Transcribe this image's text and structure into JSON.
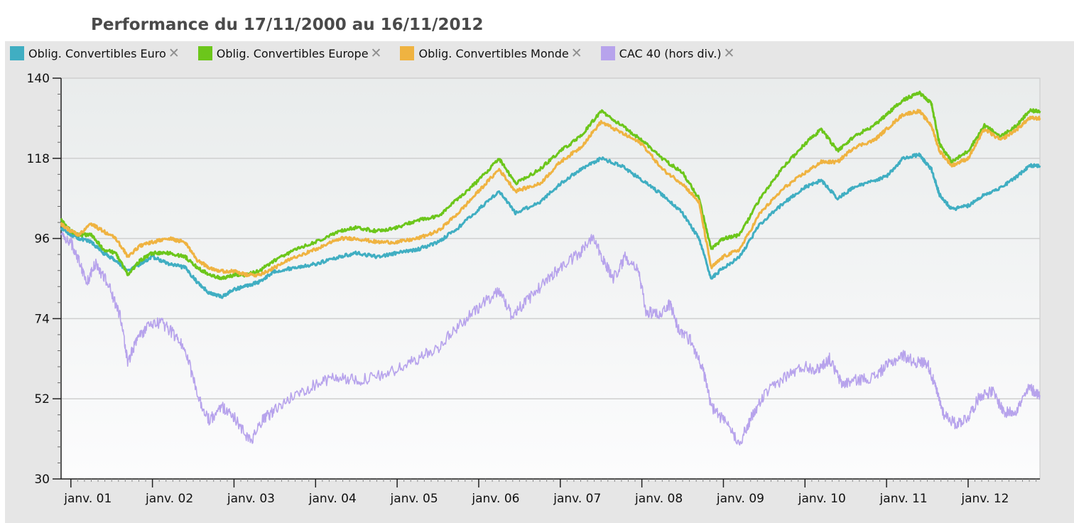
{
  "chart_data": {
    "type": "line",
    "title": "Performance du 17/11/2000 au 16/11/2012",
    "xlabel": "",
    "ylabel": "",
    "ylim": [
      30,
      140
    ],
    "yticks": [
      30,
      52,
      74,
      96,
      118,
      140
    ],
    "xlim": [
      2000.88,
      2012.88
    ],
    "xticks": [
      {
        "x": 2001.0,
        "label": "janv. 01"
      },
      {
        "x": 2002.0,
        "label": "janv. 02"
      },
      {
        "x": 2003.0,
        "label": "janv. 03"
      },
      {
        "x": 2004.0,
        "label": "janv. 04"
      },
      {
        "x": 2005.0,
        "label": "janv. 05"
      },
      {
        "x": 2006.0,
        "label": "janv. 06"
      },
      {
        "x": 2007.0,
        "label": "janv. 07"
      },
      {
        "x": 2008.0,
        "label": "janv. 08"
      },
      {
        "x": 2009.0,
        "label": "janv. 09"
      },
      {
        "x": 2010.0,
        "label": "janv. 10"
      },
      {
        "x": 2011.0,
        "label": "janv. 11"
      },
      {
        "x": 2012.0,
        "label": "janv. 12"
      }
    ],
    "grid": true,
    "legend_position": "top",
    "series": [
      {
        "name": "Oblig. Convertibles Euro",
        "color": "#40aec2",
        "points": [
          [
            2000.88,
            99
          ],
          [
            2001.0,
            97
          ],
          [
            2001.1,
            96
          ],
          [
            2001.25,
            95
          ],
          [
            2001.4,
            92
          ],
          [
            2001.55,
            90
          ],
          [
            2001.7,
            87
          ],
          [
            2001.85,
            89
          ],
          [
            2002.0,
            91
          ],
          [
            2002.2,
            89
          ],
          [
            2002.4,
            88
          ],
          [
            2002.55,
            84
          ],
          [
            2002.7,
            81
          ],
          [
            2002.85,
            80
          ],
          [
            2003.0,
            82
          ],
          [
            2003.15,
            83
          ],
          [
            2003.3,
            84
          ],
          [
            2003.5,
            87
          ],
          [
            2003.75,
            88
          ],
          [
            2004.0,
            89
          ],
          [
            2004.3,
            91
          ],
          [
            2004.5,
            92
          ],
          [
            2004.75,
            91
          ],
          [
            2005.0,
            92
          ],
          [
            2005.25,
            93
          ],
          [
            2005.5,
            95
          ],
          [
            2005.75,
            99
          ],
          [
            2006.0,
            104
          ],
          [
            2006.25,
            109
          ],
          [
            2006.45,
            103
          ],
          [
            2006.75,
            106
          ],
          [
            2007.0,
            111
          ],
          [
            2007.25,
            115
          ],
          [
            2007.5,
            118
          ],
          [
            2007.75,
            116
          ],
          [
            2008.0,
            112
          ],
          [
            2008.25,
            108
          ],
          [
            2008.5,
            103
          ],
          [
            2008.7,
            96
          ],
          [
            2008.85,
            85
          ],
          [
            2009.0,
            88
          ],
          [
            2009.2,
            91
          ],
          [
            2009.45,
            100
          ],
          [
            2009.75,
            106
          ],
          [
            2010.0,
            110
          ],
          [
            2010.2,
            112
          ],
          [
            2010.4,
            107
          ],
          [
            2010.6,
            110
          ],
          [
            2010.85,
            112
          ],
          [
            2011.0,
            113
          ],
          [
            2011.2,
            118
          ],
          [
            2011.4,
            119
          ],
          [
            2011.55,
            115
          ],
          [
            2011.65,
            108
          ],
          [
            2011.8,
            104
          ],
          [
            2012.0,
            105
          ],
          [
            2012.2,
            108
          ],
          [
            2012.4,
            110
          ],
          [
            2012.6,
            113
          ],
          [
            2012.75,
            116
          ],
          [
            2012.88,
            116
          ]
        ]
      },
      {
        "name": "Oblig. Convertibles Europe",
        "color": "#6cc61b",
        "points": [
          [
            2000.88,
            101
          ],
          [
            2001.0,
            98
          ],
          [
            2001.1,
            97
          ],
          [
            2001.25,
            97
          ],
          [
            2001.4,
            93
          ],
          [
            2001.55,
            92
          ],
          [
            2001.7,
            86
          ],
          [
            2001.85,
            90
          ],
          [
            2002.0,
            92
          ],
          [
            2002.2,
            92
          ],
          [
            2002.4,
            91
          ],
          [
            2002.55,
            88
          ],
          [
            2002.7,
            86
          ],
          [
            2002.85,
            85
          ],
          [
            2003.0,
            86
          ],
          [
            2003.15,
            86
          ],
          [
            2003.3,
            87
          ],
          [
            2003.5,
            90
          ],
          [
            2003.75,
            93
          ],
          [
            2004.0,
            95
          ],
          [
            2004.3,
            98
          ],
          [
            2004.5,
            99
          ],
          [
            2004.75,
            98
          ],
          [
            2005.0,
            99
          ],
          [
            2005.25,
            101
          ],
          [
            2005.5,
            102
          ],
          [
            2005.75,
            107
          ],
          [
            2006.0,
            112
          ],
          [
            2006.25,
            118
          ],
          [
            2006.45,
            111
          ],
          [
            2006.75,
            115
          ],
          [
            2007.0,
            120
          ],
          [
            2007.25,
            124
          ],
          [
            2007.5,
            131
          ],
          [
            2007.75,
            127
          ],
          [
            2008.0,
            123
          ],
          [
            2008.25,
            118
          ],
          [
            2008.5,
            114
          ],
          [
            2008.7,
            107
          ],
          [
            2008.85,
            93
          ],
          [
            2009.0,
            96
          ],
          [
            2009.2,
            97
          ],
          [
            2009.45,
            107
          ],
          [
            2009.75,
            116
          ],
          [
            2010.0,
            122
          ],
          [
            2010.2,
            126
          ],
          [
            2010.4,
            120
          ],
          [
            2010.6,
            124
          ],
          [
            2010.85,
            127
          ],
          [
            2011.0,
            130
          ],
          [
            2011.2,
            134
          ],
          [
            2011.4,
            136
          ],
          [
            2011.55,
            133
          ],
          [
            2011.65,
            122
          ],
          [
            2011.8,
            117
          ],
          [
            2012.0,
            120
          ],
          [
            2012.2,
            127
          ],
          [
            2012.4,
            124
          ],
          [
            2012.6,
            127
          ],
          [
            2012.75,
            131
          ],
          [
            2012.88,
            131
          ]
        ]
      },
      {
        "name": "Oblig. Convertibles Monde",
        "color": "#efb341",
        "points": [
          [
            2000.88,
            100
          ],
          [
            2001.0,
            98
          ],
          [
            2001.1,
            97
          ],
          [
            2001.25,
            100
          ],
          [
            2001.4,
            98
          ],
          [
            2001.55,
            96
          ],
          [
            2001.7,
            91
          ],
          [
            2001.85,
            94
          ],
          [
            2002.0,
            95
          ],
          [
            2002.2,
            96
          ],
          [
            2002.4,
            95
          ],
          [
            2002.55,
            90
          ],
          [
            2002.7,
            88
          ],
          [
            2002.85,
            87
          ],
          [
            2003.0,
            87
          ],
          [
            2003.15,
            86
          ],
          [
            2003.3,
            86
          ],
          [
            2003.5,
            88
          ],
          [
            2003.75,
            91
          ],
          [
            2004.0,
            93
          ],
          [
            2004.3,
            96
          ],
          [
            2004.5,
            96
          ],
          [
            2004.75,
            95
          ],
          [
            2005.0,
            95
          ],
          [
            2005.25,
            96
          ],
          [
            2005.5,
            98
          ],
          [
            2005.75,
            103
          ],
          [
            2006.0,
            109
          ],
          [
            2006.25,
            115
          ],
          [
            2006.45,
            109
          ],
          [
            2006.75,
            111
          ],
          [
            2007.0,
            117
          ],
          [
            2007.25,
            121
          ],
          [
            2007.5,
            128
          ],
          [
            2007.75,
            125
          ],
          [
            2008.0,
            122
          ],
          [
            2008.25,
            115
          ],
          [
            2008.5,
            111
          ],
          [
            2008.7,
            106
          ],
          [
            2008.85,
            88
          ],
          [
            2009.0,
            91
          ],
          [
            2009.2,
            93
          ],
          [
            2009.45,
            103
          ],
          [
            2009.75,
            110
          ],
          [
            2010.0,
            114
          ],
          [
            2010.2,
            117
          ],
          [
            2010.4,
            117
          ],
          [
            2010.6,
            121
          ],
          [
            2010.85,
            123
          ],
          [
            2011.0,
            126
          ],
          [
            2011.2,
            130
          ],
          [
            2011.4,
            131
          ],
          [
            2011.55,
            127
          ],
          [
            2011.65,
            120
          ],
          [
            2011.8,
            116
          ],
          [
            2012.0,
            118
          ],
          [
            2012.2,
            126
          ],
          [
            2012.4,
            123
          ],
          [
            2012.6,
            126
          ],
          [
            2012.75,
            129
          ],
          [
            2012.88,
            129
          ]
        ]
      },
      {
        "name": "CAC 40 (hors div.)",
        "color": "#b7a3ec",
        "points": [
          [
            2000.88,
            97
          ],
          [
            2001.0,
            95
          ],
          [
            2001.1,
            90
          ],
          [
            2001.2,
            84
          ],
          [
            2001.3,
            89
          ],
          [
            2001.45,
            84
          ],
          [
            2001.6,
            75
          ],
          [
            2001.7,
            62
          ],
          [
            2001.8,
            68
          ],
          [
            2001.95,
            72
          ],
          [
            2002.1,
            73
          ],
          [
            2002.25,
            70
          ],
          [
            2002.4,
            66
          ],
          [
            2002.55,
            53
          ],
          [
            2002.7,
            46
          ],
          [
            2002.85,
            50
          ],
          [
            2003.0,
            47
          ],
          [
            2003.2,
            40
          ],
          [
            2003.35,
            46
          ],
          [
            2003.5,
            49
          ],
          [
            2003.75,
            53
          ],
          [
            2004.0,
            56
          ],
          [
            2004.25,
            58
          ],
          [
            2004.5,
            57
          ],
          [
            2004.75,
            58
          ],
          [
            2005.0,
            60
          ],
          [
            2005.25,
            63
          ],
          [
            2005.5,
            66
          ],
          [
            2005.75,
            72
          ],
          [
            2006.0,
            77
          ],
          [
            2006.25,
            82
          ],
          [
            2006.4,
            75
          ],
          [
            2006.6,
            79
          ],
          [
            2006.85,
            85
          ],
          [
            2007.0,
            88
          ],
          [
            2007.25,
            92
          ],
          [
            2007.4,
            97
          ],
          [
            2007.55,
            89
          ],
          [
            2007.65,
            85
          ],
          [
            2007.8,
            91
          ],
          [
            2007.95,
            88
          ],
          [
            2008.05,
            76
          ],
          [
            2008.2,
            75
          ],
          [
            2008.35,
            78
          ],
          [
            2008.45,
            71
          ],
          [
            2008.6,
            68
          ],
          [
            2008.75,
            60
          ],
          [
            2008.85,
            50
          ],
          [
            2009.0,
            46
          ],
          [
            2009.2,
            40
          ],
          [
            2009.35,
            47
          ],
          [
            2009.5,
            53
          ],
          [
            2009.75,
            58
          ],
          [
            2010.0,
            61
          ],
          [
            2010.15,
            60
          ],
          [
            2010.3,
            63
          ],
          [
            2010.45,
            56
          ],
          [
            2010.6,
            57
          ],
          [
            2010.85,
            58
          ],
          [
            2011.0,
            61
          ],
          [
            2011.2,
            64
          ],
          [
            2011.35,
            62
          ],
          [
            2011.5,
            62
          ],
          [
            2011.6,
            55
          ],
          [
            2011.7,
            48
          ],
          [
            2011.85,
            45
          ],
          [
            2012.0,
            47
          ],
          [
            2012.15,
            53
          ],
          [
            2012.3,
            54
          ],
          [
            2012.45,
            48
          ],
          [
            2012.6,
            49
          ],
          [
            2012.75,
            55
          ],
          [
            2012.88,
            53
          ]
        ]
      }
    ]
  },
  "legend": {
    "close_glyph": "✕"
  }
}
